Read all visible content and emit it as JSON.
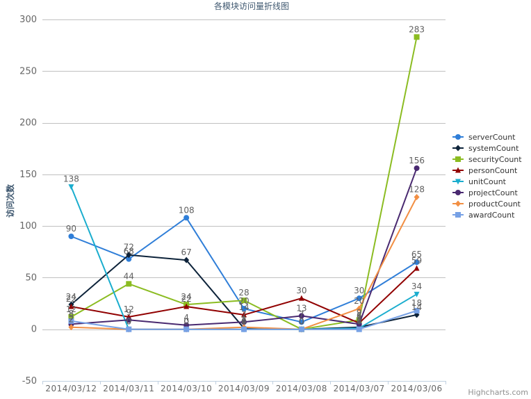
{
  "chart_data": {
    "type": "line",
    "title": "各模块访问量折线图",
    "ylabel": "访问次数",
    "xlabel": "",
    "ylim": [
      -50,
      300
    ],
    "yticks": [
      -50,
      0,
      50,
      100,
      150,
      200,
      250,
      300
    ],
    "categories": [
      "2014/03/12",
      "2014/03/11",
      "2014/03/10",
      "2014/03/09",
      "2014/03/08",
      "2014/03/07",
      "2014/03/06"
    ],
    "grid": "horizontal",
    "legend_position": "right",
    "series": [
      {
        "name": "serverCount",
        "color": "#2f7ed8",
        "marker": "circle",
        "values": [
          90,
          68,
          108,
          20,
          7,
          30,
          65
        ]
      },
      {
        "name": "systemCount",
        "color": "#0d233a",
        "marker": "diamond",
        "values": [
          24,
          72,
          67,
          1,
          0,
          2,
          14
        ]
      },
      {
        "name": "securityCount",
        "color": "#8bbc21",
        "marker": "square",
        "values": [
          12,
          44,
          24,
          28,
          0,
          9,
          283
        ]
      },
      {
        "name": "personCount",
        "color": "#910000",
        "marker": "triangle",
        "values": [
          22,
          12,
          22,
          14,
          30,
          6,
          59
        ]
      },
      {
        "name": "unitCount",
        "color": "#1aadce",
        "marker": "triangle-down",
        "values": [
          138,
          0,
          0,
          0,
          0,
          1,
          34
        ]
      },
      {
        "name": "projectCount",
        "color": "#492970",
        "marker": "circle",
        "values": [
          5,
          9,
          4,
          7,
          13,
          5,
          156
        ]
      },
      {
        "name": "productCount",
        "color": "#f28f43",
        "marker": "diamond",
        "values": [
          2,
          0,
          0,
          2,
          0,
          20,
          128
        ]
      },
      {
        "name": "awardCount",
        "color": "#77a1e5",
        "marker": "square",
        "values": [
          8,
          0,
          0,
          0,
          0,
          0,
          18
        ]
      }
    ]
  },
  "credits": "Highcharts.com"
}
